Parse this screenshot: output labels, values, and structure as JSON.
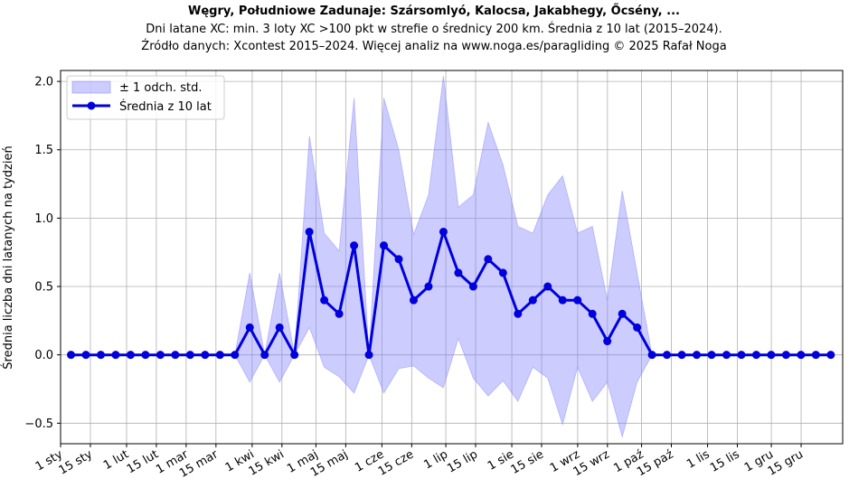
{
  "chart_data": {
    "type": "line",
    "title": "Węgry, Południowe Zadunaje: Szársomlyó, Kalocsa, Jakabhegy, Őcsény, ...",
    "subtitle_lines": [
      "Dni latane XC: min. 3 loty XC >100 pkt w strefie o średnicy 200 km. Średnia z 10 lat (2015–2024).",
      "Źródło danych: Xcontest 2015–2024. Więcej analiz na www.noga.es/paragliding © 2025 Rafał Noga"
    ],
    "xlabel": "",
    "ylabel": "Średnia liczba dni latanych na tydzień",
    "ylim": [
      -0.65,
      2.08
    ],
    "xlim": [
      0,
      52.5
    ],
    "yticks": [
      -0.5,
      0.0,
      0.5,
      1.0,
      1.5,
      2.0
    ],
    "ytick_labels": [
      "−0.5",
      "0.0",
      "0.5",
      "1.0",
      "1.5",
      "2.0"
    ],
    "xticks": [
      {
        "pos": 0,
        "label": "1 sty"
      },
      {
        "pos": 2,
        "label": "15 sty"
      },
      {
        "pos": 4.43,
        "label": "1 lut"
      },
      {
        "pos": 6.43,
        "label": "15 lut"
      },
      {
        "pos": 8.43,
        "label": "1 mar"
      },
      {
        "pos": 10.43,
        "label": "15 mar"
      },
      {
        "pos": 12.86,
        "label": "1 kwi"
      },
      {
        "pos": 14.86,
        "label": "15 kwi"
      },
      {
        "pos": 17.14,
        "label": "1 maj"
      },
      {
        "pos": 19.14,
        "label": "15 maj"
      },
      {
        "pos": 21.57,
        "label": "1 cze"
      },
      {
        "pos": 23.57,
        "label": "15 cze"
      },
      {
        "pos": 25.86,
        "label": "1 lip"
      },
      {
        "pos": 27.86,
        "label": "15 lip"
      },
      {
        "pos": 30.29,
        "label": "1 sie"
      },
      {
        "pos": 32.29,
        "label": "15 sie"
      },
      {
        "pos": 34.71,
        "label": "1 wrz"
      },
      {
        "pos": 36.71,
        "label": "15 wrz"
      },
      {
        "pos": 39.0,
        "label": "1 paź"
      },
      {
        "pos": 41.0,
        "label": "15 paź"
      },
      {
        "pos": 43.43,
        "label": "1 lis"
      },
      {
        "pos": 45.43,
        "label": "15 lis"
      },
      {
        "pos": 47.71,
        "label": "1 gru"
      },
      {
        "pos": 49.71,
        "label": "15 gru"
      }
    ],
    "grid": true,
    "legend_position": "top-left",
    "series": [
      {
        "name": "Średnia z 10 lat",
        "color": "#0000dd",
        "x": [
          0.7,
          1.7,
          2.7,
          3.7,
          4.7,
          5.7,
          6.7,
          7.7,
          8.7,
          9.7,
          10.7,
          11.7,
          12.7,
          13.7,
          14.7,
          15.7,
          16.7,
          17.7,
          18.7,
          19.7,
          20.7,
          21.7,
          22.7,
          23.7,
          24.7,
          25.7,
          26.7,
          27.7,
          28.7,
          29.7,
          30.7,
          31.7,
          32.7,
          33.7,
          34.7,
          35.7,
          36.7,
          37.7,
          38.7,
          39.7,
          40.7,
          41.7,
          42.7,
          43.7,
          44.7,
          45.7,
          46.7,
          47.7,
          48.7,
          49.7,
          50.7,
          51.7
        ],
        "values": [
          0,
          0,
          0,
          0,
          0,
          0,
          0,
          0,
          0,
          0,
          0,
          0,
          0.2,
          0,
          0.2,
          0,
          0.9,
          0.4,
          0.3,
          0.8,
          0,
          0.8,
          0.7,
          0.4,
          0.5,
          0.9,
          0.6,
          0.5,
          0.7,
          0.6,
          0.3,
          0.4,
          0.5,
          0.4,
          0.4,
          0.3,
          0.1,
          0.3,
          0.2,
          0,
          0,
          0,
          0,
          0,
          0,
          0,
          0,
          0,
          0,
          0,
          0,
          0
        ]
      },
      {
        "name": "± 1 odch. std.",
        "type": "band",
        "color": "#8080ff",
        "upper": [
          0,
          0,
          0,
          0,
          0,
          0,
          0,
          0,
          0,
          0,
          0,
          0,
          0.6,
          0,
          0.6,
          0,
          1.6,
          0.89,
          0.76,
          1.88,
          0,
          1.88,
          1.5,
          0.88,
          1.17,
          2.04,
          1.08,
          1.17,
          1.7,
          1.39,
          0.94,
          0.89,
          1.17,
          1.31,
          0.89,
          0.94,
          0.4,
          1.2,
          0.6,
          0,
          0,
          0,
          0,
          0,
          0,
          0,
          0,
          0,
          0,
          0,
          0,
          0
        ],
        "lower": [
          0,
          0,
          0,
          0,
          0,
          0,
          0,
          0,
          0,
          0,
          0,
          0,
          -0.2,
          0,
          -0.2,
          0,
          0.2,
          -0.09,
          -0.16,
          -0.28,
          0,
          -0.28,
          -0.1,
          -0.08,
          -0.17,
          -0.24,
          0.12,
          -0.17,
          -0.3,
          -0.19,
          -0.34,
          -0.09,
          -0.17,
          -0.51,
          -0.09,
          -0.34,
          -0.2,
          -0.6,
          -0.2,
          0,
          0,
          0,
          0,
          0,
          0,
          0,
          0,
          0,
          0,
          0,
          0,
          0
        ]
      }
    ]
  }
}
